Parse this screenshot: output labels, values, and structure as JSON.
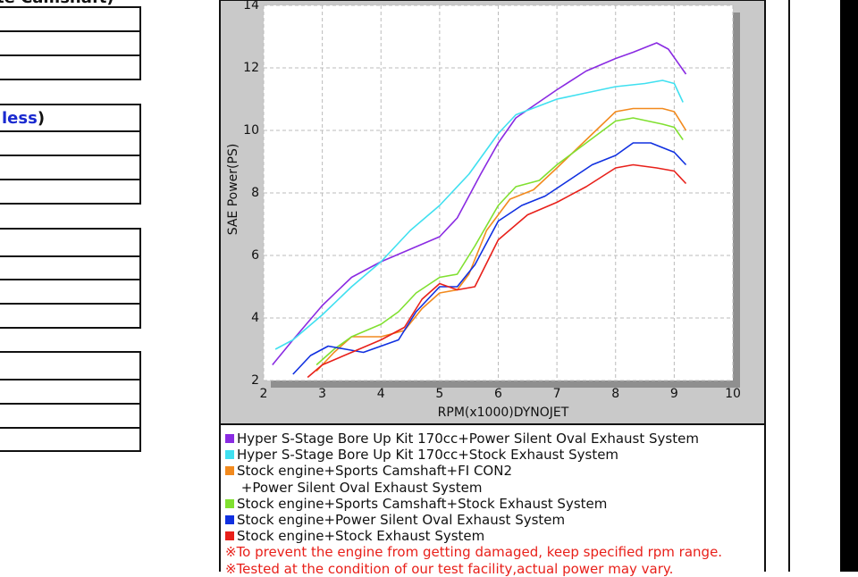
{
  "left": {
    "heading_1": "te Camshaft)",
    "heading_2_link": "less",
    "heading_2_suffix": ")"
  },
  "chart_data": {
    "type": "line",
    "xlabel": "RPM(x1000)DYNOJET",
    "ylabel": "SAE Power(PS)",
    "xlim": [
      2,
      10
    ],
    "xticks": [
      2,
      3,
      4,
      5,
      6,
      7,
      8,
      9,
      10
    ],
    "ylim": [
      2,
      14
    ],
    "yticks": [
      2,
      4,
      6,
      8,
      10,
      12,
      14
    ],
    "grid": true,
    "series": [
      {
        "name": "Hyper S-Stage Bore Up Kit 170cc+Power Silent Oval Exhaust System",
        "color": "#8a2be2",
        "x": [
          2.15,
          2.5,
          3.0,
          3.5,
          4.0,
          4.5,
          5.0,
          5.3,
          5.7,
          6.0,
          6.3,
          7.0,
          7.5,
          8.0,
          8.3,
          8.7,
          8.9,
          9.2
        ],
        "values": [
          2.5,
          3.3,
          4.4,
          5.3,
          5.8,
          6.2,
          6.6,
          7.2,
          8.6,
          9.6,
          10.4,
          11.3,
          11.9,
          12.3,
          12.5,
          12.8,
          12.6,
          11.8
        ]
      },
      {
        "name": "Hyper S-Stage Bore Up Kit 170cc+Stock Exhaust System",
        "color": "#40e0f0",
        "x": [
          2.2,
          2.5,
          3.0,
          3.5,
          4.0,
          4.5,
          5.0,
          5.5,
          6.0,
          6.3,
          7.0,
          7.5,
          8.0,
          8.5,
          8.8,
          9.0,
          9.15
        ],
        "values": [
          3.0,
          3.3,
          4.1,
          5.0,
          5.8,
          6.8,
          7.6,
          8.6,
          9.9,
          10.5,
          11.0,
          11.2,
          11.4,
          11.5,
          11.6,
          11.5,
          10.9
        ]
      },
      {
        "name": "Stock engine+Sports Camshaft+FI CON2\n +Power Silent Oval Exhaust System",
        "color": "#f28a1e",
        "x": [
          2.9,
          3.2,
          3.5,
          4.0,
          4.4,
          4.7,
          5.0,
          5.3,
          5.5,
          5.8,
          6.2,
          6.6,
          7.0,
          7.5,
          8.0,
          8.3,
          8.8,
          9.0,
          9.2
        ],
        "values": [
          2.3,
          2.9,
          3.4,
          3.4,
          3.6,
          4.3,
          4.8,
          4.9,
          5.4,
          6.8,
          7.8,
          8.1,
          8.8,
          9.7,
          10.6,
          10.7,
          10.7,
          10.6,
          10.0
        ]
      },
      {
        "name": "Stock engine+Sports Camshaft+Stock Exhaust System",
        "color": "#80e030",
        "x": [
          2.9,
          3.2,
          3.5,
          4.0,
          4.3,
          4.6,
          5.0,
          5.3,
          5.6,
          6.0,
          6.3,
          6.7,
          7.0,
          7.5,
          8.0,
          8.3,
          8.8,
          9.0,
          9.15
        ],
        "values": [
          2.5,
          3.0,
          3.4,
          3.8,
          4.2,
          4.8,
          5.3,
          5.4,
          6.3,
          7.6,
          8.2,
          8.4,
          8.9,
          9.6,
          10.3,
          10.4,
          10.2,
          10.1,
          9.7
        ]
      },
      {
        "name": "Stock engine+Power Silent Oval Exhaust System",
        "color": "#1030e0",
        "x": [
          2.5,
          2.8,
          3.1,
          3.4,
          3.7,
          4.0,
          4.3,
          4.6,
          5.0,
          5.3,
          5.6,
          6.0,
          6.4,
          6.8,
          7.2,
          7.6,
          8.0,
          8.3,
          8.6,
          9.0,
          9.2
        ],
        "values": [
          2.2,
          2.8,
          3.1,
          3.0,
          2.9,
          3.1,
          3.3,
          4.2,
          5.0,
          5.0,
          5.7,
          7.1,
          7.6,
          7.9,
          8.4,
          8.9,
          9.2,
          9.6,
          9.6,
          9.3,
          8.9
        ]
      },
      {
        "name": "Stock engine+Stock Exhaust System",
        "color": "#e8201a",
        "x": [
          2.75,
          3.0,
          3.5,
          4.0,
          4.4,
          4.7,
          5.0,
          5.3,
          5.6,
          6.0,
          6.5,
          7.0,
          7.5,
          8.0,
          8.3,
          8.7,
          9.0,
          9.2
        ],
        "values": [
          2.1,
          2.5,
          2.9,
          3.3,
          3.7,
          4.6,
          5.1,
          4.9,
          5.0,
          6.5,
          7.3,
          7.7,
          8.2,
          8.8,
          8.9,
          8.8,
          8.7,
          8.3
        ]
      }
    ],
    "notes": [
      "※To prevent the engine from getting damaged, keep specified rpm range.",
      "※Tested at the condition of our test facility,actual power may vary."
    ]
  }
}
